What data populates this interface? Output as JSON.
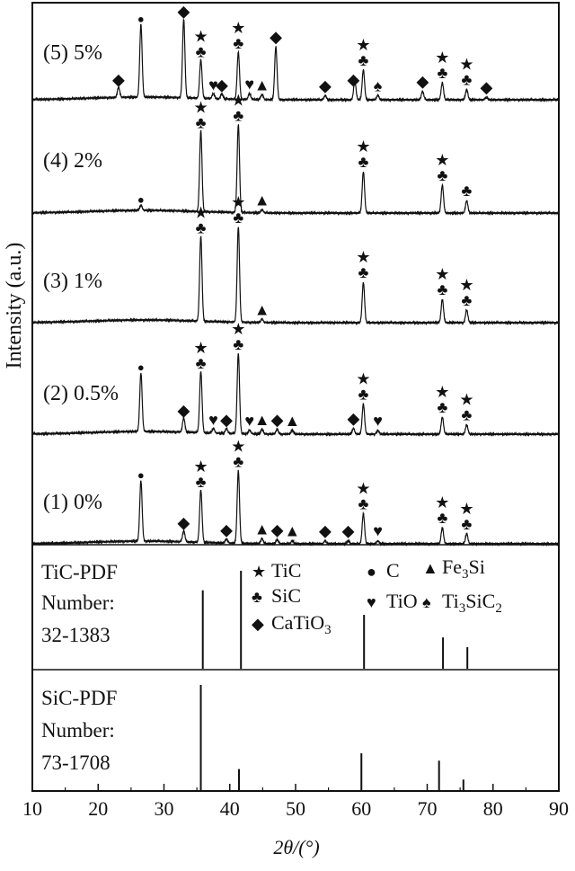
{
  "chart_data": {
    "type": "line",
    "xlabel": "2θ/(°)",
    "ylabel": "Intensity (a.u.)",
    "xlim": [
      10,
      90
    ],
    "x_ticks": [
      "10",
      "20",
      "30",
      "40",
      "50",
      "60",
      "70",
      "80",
      "90"
    ],
    "grid": false,
    "series": [
      {
        "name": "(5) 5%",
        "peaks": [
          {
            "x": 23.1,
            "h": 0.12
          },
          {
            "x": 26.5,
            "h": 0.85
          },
          {
            "x": 33.0,
            "h": 0.92
          },
          {
            "x": 35.6,
            "h": 0.45
          },
          {
            "x": 37.5,
            "h": 0.06
          },
          {
            "x": 38.8,
            "h": 0.06
          },
          {
            "x": 41.3,
            "h": 0.55
          },
          {
            "x": 43.0,
            "h": 0.07
          },
          {
            "x": 44.9,
            "h": 0.06
          },
          {
            "x": 47.0,
            "h": 0.62
          },
          {
            "x": 54.5,
            "h": 0.05
          },
          {
            "x": 59.0,
            "h": 0.22
          },
          {
            "x": 60.3,
            "h": 0.35
          },
          {
            "x": 62.5,
            "h": 0.05
          },
          {
            "x": 69.3,
            "h": 0.1
          },
          {
            "x": 72.3,
            "h": 0.2
          },
          {
            "x": 76.0,
            "h": 0.12
          },
          {
            "x": 79.0,
            "h": 0.03
          }
        ]
      },
      {
        "name": "(4) 2%",
        "peaks": [
          {
            "x": 26.5,
            "h": 0.05
          },
          {
            "x": 35.6,
            "h": 0.78
          },
          {
            "x": 41.3,
            "h": 0.85
          },
          {
            "x": 44.9,
            "h": 0.03
          },
          {
            "x": 60.3,
            "h": 0.4
          },
          {
            "x": 72.3,
            "h": 0.27
          },
          {
            "x": 76.0,
            "h": 0.12
          }
        ]
      },
      {
        "name": "(3) 1%",
        "peaks": [
          {
            "x": 35.6,
            "h": 0.8
          },
          {
            "x": 41.3,
            "h": 0.9
          },
          {
            "x": 44.9,
            "h": 0.03
          },
          {
            "x": 60.3,
            "h": 0.38
          },
          {
            "x": 72.3,
            "h": 0.22
          },
          {
            "x": 76.0,
            "h": 0.12
          }
        ]
      },
      {
        "name": "(2) 0.5%",
        "peaks": [
          {
            "x": 26.5,
            "h": 0.62
          },
          {
            "x": 33.0,
            "h": 0.15
          },
          {
            "x": 35.6,
            "h": 0.65
          },
          {
            "x": 37.5,
            "h": 0.05
          },
          {
            "x": 39.5,
            "h": 0.05
          },
          {
            "x": 41.3,
            "h": 0.85
          },
          {
            "x": 43.0,
            "h": 0.04
          },
          {
            "x": 44.9,
            "h": 0.05
          },
          {
            "x": 47.2,
            "h": 0.05
          },
          {
            "x": 49.5,
            "h": 0.04
          },
          {
            "x": 58.8,
            "h": 0.06
          },
          {
            "x": 60.3,
            "h": 0.32
          },
          {
            "x": 62.5,
            "h": 0.04
          },
          {
            "x": 72.3,
            "h": 0.18
          },
          {
            "x": 76.0,
            "h": 0.1
          }
        ]
      },
      {
        "name": "(1) 0%",
        "peaks": [
          {
            "x": 26.5,
            "h": 0.6
          },
          {
            "x": 33.0,
            "h": 0.11
          },
          {
            "x": 35.6,
            "h": 0.52
          },
          {
            "x": 39.5,
            "h": 0.04
          },
          {
            "x": 41.3,
            "h": 0.72
          },
          {
            "x": 44.9,
            "h": 0.05
          },
          {
            "x": 47.2,
            "h": 0.04
          },
          {
            "x": 49.5,
            "h": 0.03
          },
          {
            "x": 54.5,
            "h": 0.03
          },
          {
            "x": 58.0,
            "h": 0.03
          },
          {
            "x": 60.3,
            "h": 0.3
          },
          {
            "x": 62.5,
            "h": 0.03
          },
          {
            "x": 72.3,
            "h": 0.16
          },
          {
            "x": 76.0,
            "h": 0.1
          }
        ]
      }
    ],
    "markers": [
      [
        {
          "x": 23.1,
          "sym": [
            "diamond"
          ]
        },
        {
          "x": 26.5,
          "sym": [
            "circle"
          ]
        },
        {
          "x": 33.0,
          "sym": [
            "diamond"
          ]
        },
        {
          "x": 35.6,
          "sym": [
            "star",
            "club"
          ]
        },
        {
          "x": 37.5,
          "sym": [
            "heart"
          ]
        },
        {
          "x": 38.8,
          "sym": [
            "diamond"
          ]
        },
        {
          "x": 41.3,
          "sym": [
            "star",
            "club"
          ]
        },
        {
          "x": 43.0,
          "sym": [
            "heart"
          ]
        },
        {
          "x": 44.9,
          "sym": [
            "triangle"
          ]
        },
        {
          "x": 47.0,
          "sym": [
            "diamond"
          ]
        },
        {
          "x": 54.5,
          "sym": [
            "diamond"
          ]
        },
        {
          "x": 58.8,
          "sym": [
            "diamond"
          ]
        },
        {
          "x": 60.3,
          "sym": [
            "star",
            "club"
          ]
        },
        {
          "x": 62.5,
          "sym": [
            "spade"
          ]
        },
        {
          "x": 69.3,
          "sym": [
            "diamond"
          ]
        },
        {
          "x": 72.3,
          "sym": [
            "star",
            "club"
          ]
        },
        {
          "x": 76.0,
          "sym": [
            "star",
            "club"
          ]
        },
        {
          "x": 79.0,
          "sym": [
            "diamond"
          ]
        }
      ],
      [
        {
          "x": 26.5,
          "sym": [
            "circle"
          ]
        },
        {
          "x": 35.6,
          "sym": [
            "star",
            "club"
          ]
        },
        {
          "x": 41.3,
          "sym": [
            "star",
            "club"
          ]
        },
        {
          "x": 44.9,
          "sym": [
            "triangle"
          ]
        },
        {
          "x": 60.3,
          "sym": [
            "star",
            "club"
          ]
        },
        {
          "x": 72.3,
          "sym": [
            "star",
            "club"
          ]
        },
        {
          "x": 76.0,
          "sym": [
            "club"
          ]
        }
      ],
      [
        {
          "x": 35.6,
          "sym": [
            "star",
            "club"
          ]
        },
        {
          "x": 41.3,
          "sym": [
            "star",
            "club"
          ]
        },
        {
          "x": 44.9,
          "sym": [
            "triangle"
          ]
        },
        {
          "x": 60.3,
          "sym": [
            "star",
            "club"
          ]
        },
        {
          "x": 72.3,
          "sym": [
            "star",
            "club"
          ]
        },
        {
          "x": 76.0,
          "sym": [
            "star",
            "club"
          ]
        }
      ],
      [
        {
          "x": 26.5,
          "sym": [
            "circle"
          ]
        },
        {
          "x": 33.0,
          "sym": [
            "diamond"
          ]
        },
        {
          "x": 35.6,
          "sym": [
            "star",
            "club"
          ]
        },
        {
          "x": 37.5,
          "sym": [
            "heart"
          ]
        },
        {
          "x": 39.5,
          "sym": [
            "diamond"
          ]
        },
        {
          "x": 41.3,
          "sym": [
            "star",
            "club"
          ]
        },
        {
          "x": 43.0,
          "sym": [
            "heart"
          ]
        },
        {
          "x": 44.9,
          "sym": [
            "triangle"
          ]
        },
        {
          "x": 47.2,
          "sym": [
            "diamond"
          ]
        },
        {
          "x": 49.5,
          "sym": [
            "triangle"
          ]
        },
        {
          "x": 58.8,
          "sym": [
            "diamond"
          ]
        },
        {
          "x": 60.3,
          "sym": [
            "star",
            "club"
          ]
        },
        {
          "x": 62.5,
          "sym": [
            "heart"
          ]
        },
        {
          "x": 72.3,
          "sym": [
            "star",
            "club"
          ]
        },
        {
          "x": 76.0,
          "sym": [
            "star",
            "club"
          ]
        }
      ],
      [
        {
          "x": 26.5,
          "sym": [
            "circle"
          ]
        },
        {
          "x": 33.0,
          "sym": [
            "diamond"
          ]
        },
        {
          "x": 35.6,
          "sym": [
            "star",
            "club"
          ]
        },
        {
          "x": 39.5,
          "sym": [
            "diamond"
          ]
        },
        {
          "x": 41.3,
          "sym": [
            "star",
            "club"
          ]
        },
        {
          "x": 44.9,
          "sym": [
            "triangle"
          ]
        },
        {
          "x": 47.2,
          "sym": [
            "diamond"
          ]
        },
        {
          "x": 49.5,
          "sym": [
            "triangle"
          ]
        },
        {
          "x": 54.5,
          "sym": [
            "diamond"
          ]
        },
        {
          "x": 58.0,
          "sym": [
            "diamond"
          ]
        },
        {
          "x": 60.3,
          "sym": [
            "star",
            "club"
          ]
        },
        {
          "x": 62.5,
          "sym": [
            "heart"
          ]
        },
        {
          "x": 72.3,
          "sym": [
            "star",
            "club"
          ]
        },
        {
          "x": 76.0,
          "sym": [
            "star",
            "club"
          ]
        }
      ]
    ],
    "legend": [
      {
        "sym": "star",
        "label": "TiC"
      },
      {
        "sym": "circle",
        "label": "C"
      },
      {
        "sym": "triangle",
        "label": "Fe",
        "sub": "3",
        "tail": "Si"
      },
      {
        "sym": "club",
        "label": "SiC"
      },
      {
        "sym": "heart",
        "label": "TiO"
      },
      {
        "sym": "spade",
        "label": "Ti",
        "sub": "3",
        "tail": "SiC",
        "sub2": "2"
      },
      {
        "sym": "diamond",
        "label": "CaTiO",
        "sub": "3"
      }
    ],
    "reference_patterns": [
      {
        "label_lines": [
          "TiC-PDF",
          "Number:",
          "32-1383"
        ],
        "lines": [
          {
            "x": 35.9,
            "h": 0.8
          },
          {
            "x": 41.7,
            "h": 1.0
          },
          {
            "x": 60.4,
            "h": 0.55
          },
          {
            "x": 72.4,
            "h": 0.32
          },
          {
            "x": 76.1,
            "h": 0.22
          }
        ]
      },
      {
        "label_lines": [
          "SiC-PDF",
          "Number:",
          "73-1708"
        ],
        "lines": [
          {
            "x": 35.6,
            "h": 1.0
          },
          {
            "x": 41.4,
            "h": 0.2
          },
          {
            "x": 60.0,
            "h": 0.35
          },
          {
            "x": 71.8,
            "h": 0.28
          },
          {
            "x": 75.5,
            "h": 0.1
          }
        ]
      }
    ]
  }
}
